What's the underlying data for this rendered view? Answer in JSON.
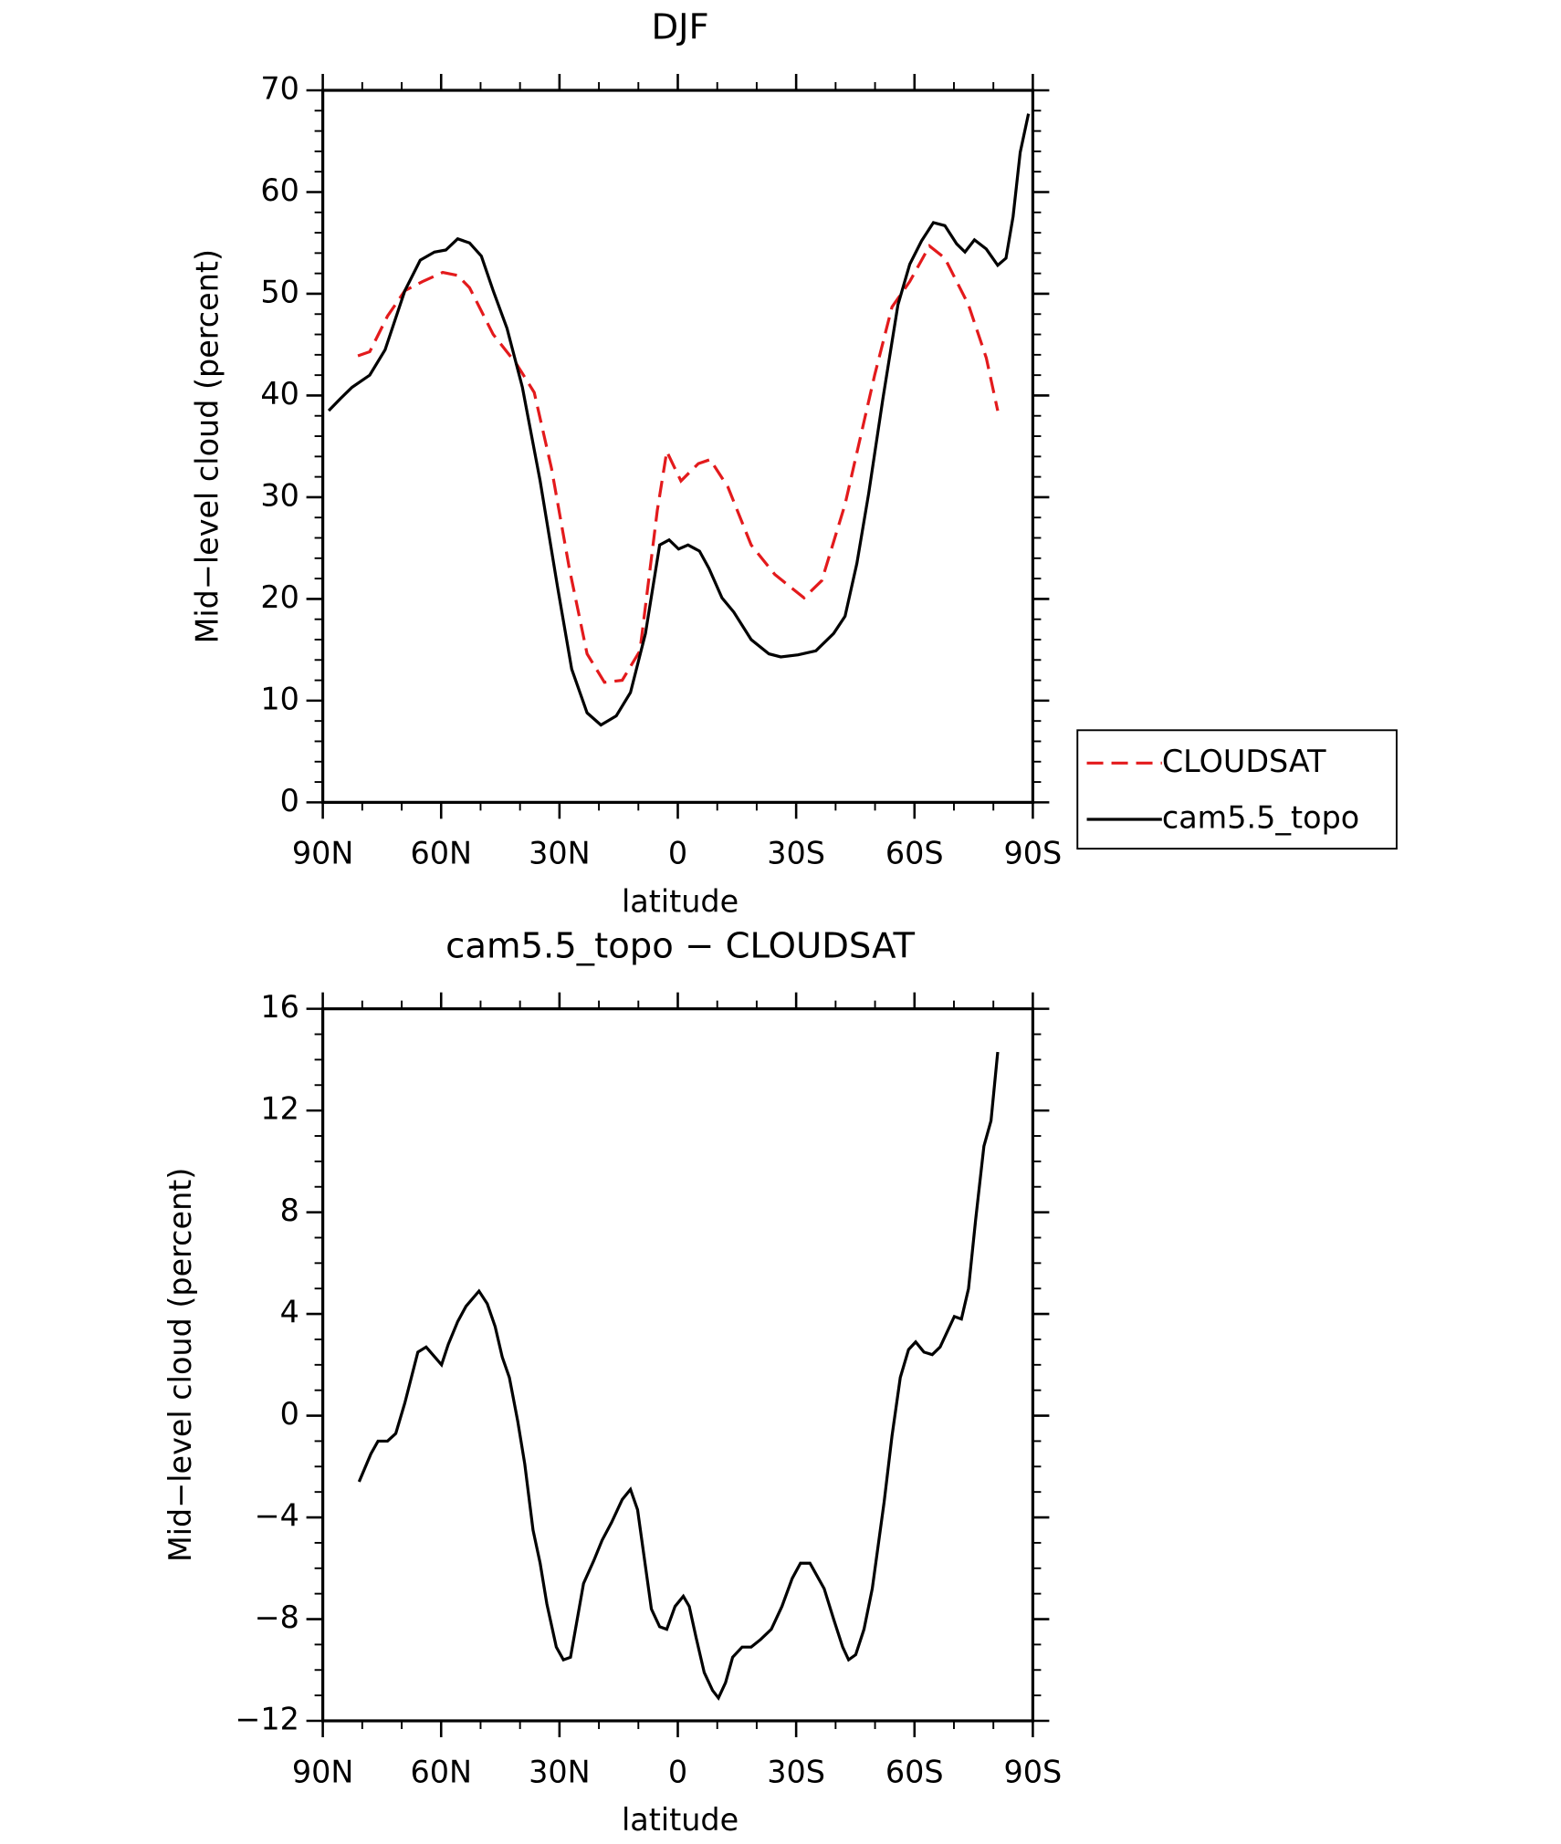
{
  "chart_data": [
    {
      "type": "line",
      "title": "DJF",
      "xlabel": "latitude",
      "ylabel": "Mid−level cloud (percent)",
      "xlim": [
        90,
        -90
      ],
      "ylim": [
        0,
        70
      ],
      "xticks": [
        {
          "value": 90,
          "label": "90N"
        },
        {
          "value": 60,
          "label": "60N"
        },
        {
          "value": 30,
          "label": "30N"
        },
        0,
        {
          "value": -30,
          "label": "30S"
        },
        {
          "value": -60,
          "label": "60S"
        },
        {
          "value": -90,
          "label": "90S"
        }
      ],
      "yticks": [
        0,
        10,
        20,
        30,
        40,
        50,
        60,
        70
      ],
      "legend": "right",
      "series": [
        {
          "name": "CLOUDSAT",
          "color": "#e31a1c",
          "dash": "dashed",
          "x": [
            81.1,
            78.1,
            73.6,
            69.2,
            64.7,
            59.6,
            55.8,
            52.8,
            46.8,
            40.9,
            36.4,
            32,
            27.5,
            23,
            18.6,
            14.1,
            9.6,
            5.2,
            2.8,
            0.7,
            -0.8,
            -5.2,
            -8.2,
            -12.7,
            -18.6,
            -24.6,
            -32,
            -36.5,
            -42.4,
            -49.9,
            -54.3,
            -58.8,
            -63.8,
            -67.7,
            -73.7,
            -78.2,
            -81.1
          ],
          "values": [
            43.9,
            44.3,
            47.8,
            50.3,
            51.2,
            52.1,
            51.8,
            50.6,
            46,
            43.1,
            40.3,
            32.8,
            23,
            14.6,
            11.8,
            12,
            14.9,
            28.7,
            34.5,
            32.8,
            31.6,
            33.3,
            33.7,
            31,
            25.3,
            22.4,
            20.1,
            21.8,
            29.3,
            42,
            48.7,
            51.2,
            54.7,
            53.5,
            48.9,
            43.7,
            38.5
          ]
        },
        {
          "name": "cam5.5_topo",
          "color": "#000000",
          "dash": "solid",
          "x": [
            88.5,
            85.5,
            82.6,
            78.1,
            74.2,
            69.2,
            65.3,
            61.7,
            58.8,
            55.8,
            52.8,
            49.8,
            46.8,
            43.3,
            39.4,
            34.9,
            30.5,
            26.9,
            23,
            19.5,
            15.6,
            12,
            8.2,
            4.6,
            2.2,
            -0.2,
            -2.6,
            -5.5,
            -7.9,
            -11.2,
            -14.2,
            -18.6,
            -23.1,
            -26.1,
            -30.5,
            -35,
            -39.5,
            -42.4,
            -45.4,
            -48.4,
            -52,
            -55.8,
            -58.8,
            -61.8,
            -64.8,
            -67.7,
            -70.7,
            -72.8,
            -75.2,
            -78.2,
            -81.1,
            -83.2,
            -85,
            -86.8,
            -88.9
          ],
          "values": [
            38.5,
            39.7,
            40.8,
            42,
            44.5,
            50.3,
            53.3,
            54.1,
            54.3,
            55.4,
            55,
            53.7,
            50.3,
            46.6,
            40.8,
            31.6,
            21.2,
            13.1,
            8.8,
            7.6,
            8.5,
            10.8,
            16.6,
            25.3,
            25.8,
            24.9,
            25.3,
            24.7,
            23,
            20.1,
            18.7,
            16,
            14.6,
            14.3,
            14.5,
            14.9,
            16.6,
            18.3,
            23.5,
            30.4,
            39.7,
            48.9,
            52.9,
            55.2,
            57,
            56.7,
            54.9,
            54.1,
            55.3,
            54.4,
            52.8,
            53.5,
            57.6,
            63.9,
            67.7
          ]
        }
      ]
    },
    {
      "type": "line",
      "title": "cam5.5_topo − CLOUDSAT",
      "xlabel": "latitude",
      "ylabel": "Mid−level cloud (percent)",
      "xlim": [
        90,
        -90
      ],
      "ylim": [
        -12,
        16
      ],
      "xticks": [
        {
          "value": 90,
          "label": "90N"
        },
        {
          "value": 60,
          "label": "60N"
        },
        {
          "value": 30,
          "label": "30N"
        },
        0,
        {
          "value": -30,
          "label": "30S"
        },
        {
          "value": -60,
          "label": "60S"
        },
        {
          "value": -90,
          "label": "90S"
        }
      ],
      "yticks": [
        {
          "value": -12,
          "label": "−12"
        },
        {
          "value": -8,
          "label": "−8"
        },
        {
          "value": -4,
          "label": "−4"
        },
        0,
        4,
        8,
        12,
        16
      ],
      "series": [
        {
          "color": "#000000",
          "dash": "solid",
          "x": [
            80.8,
            77.8,
            76,
            73.6,
            71.5,
            69.2,
            65.9,
            63.8,
            59.9,
            58.2,
            55.8,
            53.7,
            50.4,
            48.3,
            46.3,
            44.5,
            42.7,
            40.6,
            38.8,
            36.7,
            34.9,
            33.2,
            30.8,
            29,
            27.2,
            23.9,
            21.3,
            19.2,
            16.8,
            14.1,
            12,
            10.2,
            6.7,
            4.6,
            2.8,
            0.7,
            -1.4,
            -2.9,
            -4.6,
            -6.7,
            -8.8,
            -10.3,
            -12.1,
            -13.9,
            -16.3,
            -18.6,
            -21,
            -23.7,
            -26.4,
            -29,
            -31.1,
            -33.5,
            -37.1,
            -39.5,
            -41.8,
            -43.3,
            -45.1,
            -47.2,
            -49.3,
            -52.3,
            -54.3,
            -56.4,
            -58.5,
            -60.3,
            -62.4,
            -64.5,
            -66.5,
            -70.1,
            -71.9,
            -73.7,
            -75.5,
            -77.6,
            -79.4,
            -81.1
          ],
          "values": [
            -2.6,
            -1.5,
            -1,
            -1,
            -0.7,
            0.5,
            2.5,
            2.7,
            2,
            2.8,
            3.7,
            4.3,
            4.9,
            4.4,
            3.5,
            2.3,
            1.5,
            -0.2,
            -1.9,
            -4.5,
            -5.8,
            -7.4,
            -9.1,
            -9.6,
            -9.5,
            -6.6,
            -5.7,
            -4.9,
            -4.2,
            -3.3,
            -2.9,
            -3.7,
            -7.6,
            -8.3,
            -8.4,
            -7.5,
            -7.1,
            -7.5,
            -8.7,
            -10.1,
            -10.8,
            -11.1,
            -10.5,
            -9.5,
            -9.1,
            -9.1,
            -8.8,
            -8.4,
            -7.5,
            -6.4,
            -5.8,
            -5.8,
            -6.8,
            -8,
            -9.1,
            -9.6,
            -9.4,
            -8.4,
            -6.8,
            -3.4,
            -0.8,
            1.5,
            2.6,
            2.9,
            2.5,
            2.4,
            2.7,
            3.9,
            3.8,
            5,
            7.7,
            10.6,
            11.6,
            14.3
          ]
        }
      ]
    }
  ]
}
